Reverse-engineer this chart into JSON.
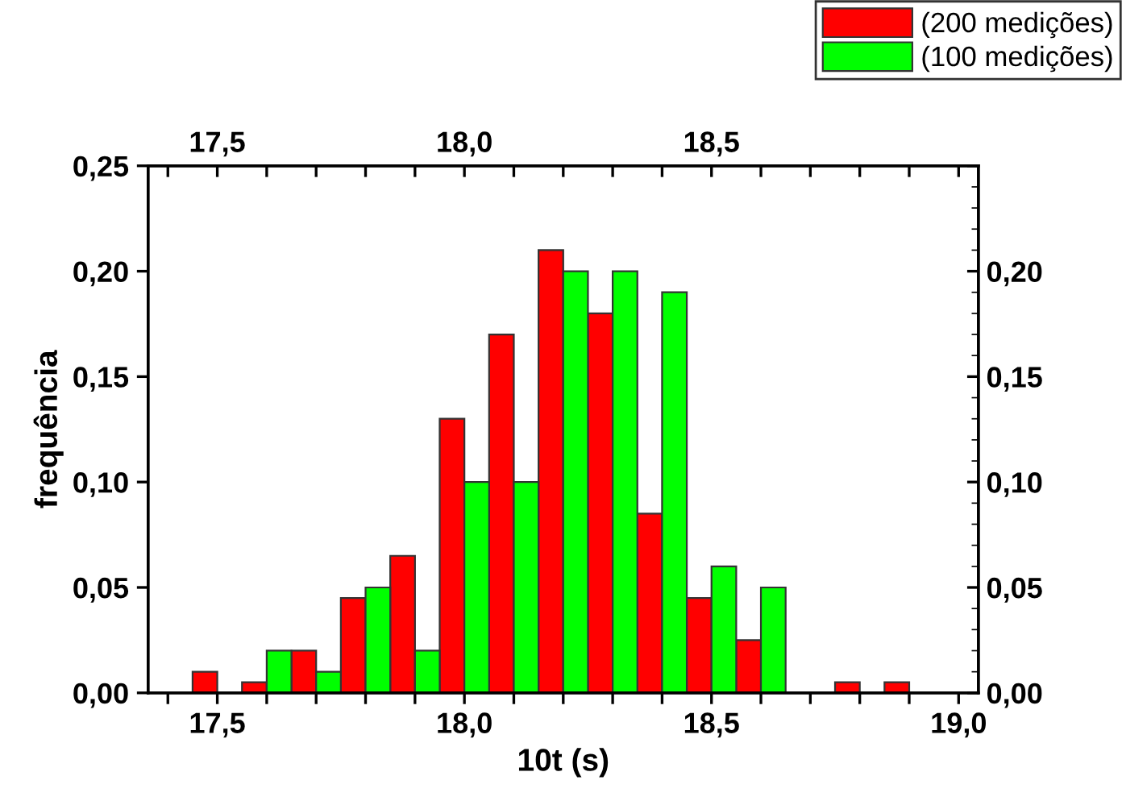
{
  "chart_data": {
    "type": "histogram",
    "xlabel": "10t (s)",
    "ylabel": "frequência",
    "bins": [
      17.45,
      17.55,
      17.65,
      17.75,
      17.85,
      17.95,
      18.05,
      18.15,
      18.25,
      18.35,
      18.45,
      18.55,
      18.65,
      18.75,
      18.85,
      18.95
    ],
    "series": [
      {
        "name": "(200 medições)",
        "color": "#ff0000",
        "values": [
          0.01,
          0.005,
          0.02,
          0.045,
          0.065,
          0.13,
          0.17,
          0.21,
          0.18,
          0.085,
          0.045,
          0.025,
          0,
          0.005,
          0.005
        ]
      },
      {
        "name": "(100 medições)",
        "color": "#00ff00",
        "values": [
          0,
          0.02,
          0.01,
          0.05,
          0.02,
          0.1,
          0.1,
          0.2,
          0.2,
          0.19,
          0.06,
          0.05,
          0,
          0,
          0
        ]
      }
    ],
    "xlim": [
      17.36,
      19.04
    ],
    "ylim": [
      0,
      0.25
    ],
    "xticks": [
      {
        "value": 17.4,
        "label": null
      },
      {
        "value": 17.5,
        "label": "17,5"
      },
      {
        "value": 17.6,
        "label": null
      },
      {
        "value": 17.7,
        "label": null
      },
      {
        "value": 17.8,
        "label": null
      },
      {
        "value": 17.9,
        "label": null
      },
      {
        "value": 18.0,
        "label": "18,0"
      },
      {
        "value": 18.1,
        "label": null
      },
      {
        "value": 18.2,
        "label": null
      },
      {
        "value": 18.3,
        "label": null
      },
      {
        "value": 18.4,
        "label": null
      },
      {
        "value": 18.5,
        "label": "18,5"
      },
      {
        "value": 18.6,
        "label": null
      },
      {
        "value": 18.7,
        "label": null
      },
      {
        "value": 18.8,
        "label": null
      },
      {
        "value": 18.9,
        "label": null
      },
      {
        "value": 19.0,
        "label": "19,0"
      }
    ],
    "x2lim": [
      17.36,
      19.04
    ],
    "x2ticks": [
      {
        "value": 17.4,
        "label": null
      },
      {
        "value": 17.5,
        "label": "17,5"
      },
      {
        "value": 17.6,
        "label": null
      },
      {
        "value": 17.7,
        "label": null
      },
      {
        "value": 17.8,
        "label": null
      },
      {
        "value": 17.9,
        "label": null
      },
      {
        "value": 18.0,
        "label": "18,0"
      },
      {
        "value": 18.1,
        "label": null
      },
      {
        "value": 18.2,
        "label": null
      },
      {
        "value": 18.3,
        "label": null
      },
      {
        "value": 18.4,
        "label": null
      },
      {
        "value": 18.5,
        "label": "18,5"
      },
      {
        "value": 18.6,
        "label": null
      },
      {
        "value": 18.7,
        "label": null
      },
      {
        "value": 18.8,
        "label": null
      },
      {
        "value": 18.9,
        "label": null
      },
      {
        "value": 19.0,
        "label": null
      }
    ],
    "yticks": [
      {
        "value": 0,
        "label": "0,00"
      },
      {
        "value": 0.05,
        "label": "0,05"
      },
      {
        "value": 0.1,
        "label": "0,10"
      },
      {
        "value": 0.15,
        "label": "0,15"
      },
      {
        "value": 0.2,
        "label": "0,20"
      },
      {
        "value": 0.25,
        "label": "0,25"
      }
    ],
    "y2lim": [
      0,
      0.25
    ],
    "y2ticks": [
      {
        "value": 0,
        "label": "0,00"
      },
      {
        "value": 0.05,
        "label": "0,05"
      },
      {
        "value": 0.1,
        "label": "0,10"
      },
      {
        "value": 0.15,
        "label": "0,15"
      },
      {
        "value": 0.2,
        "label": "0,20"
      },
      {
        "value": 0.25,
        "label": null
      }
    ],
    "legend": "top right",
    "grid": false
  }
}
